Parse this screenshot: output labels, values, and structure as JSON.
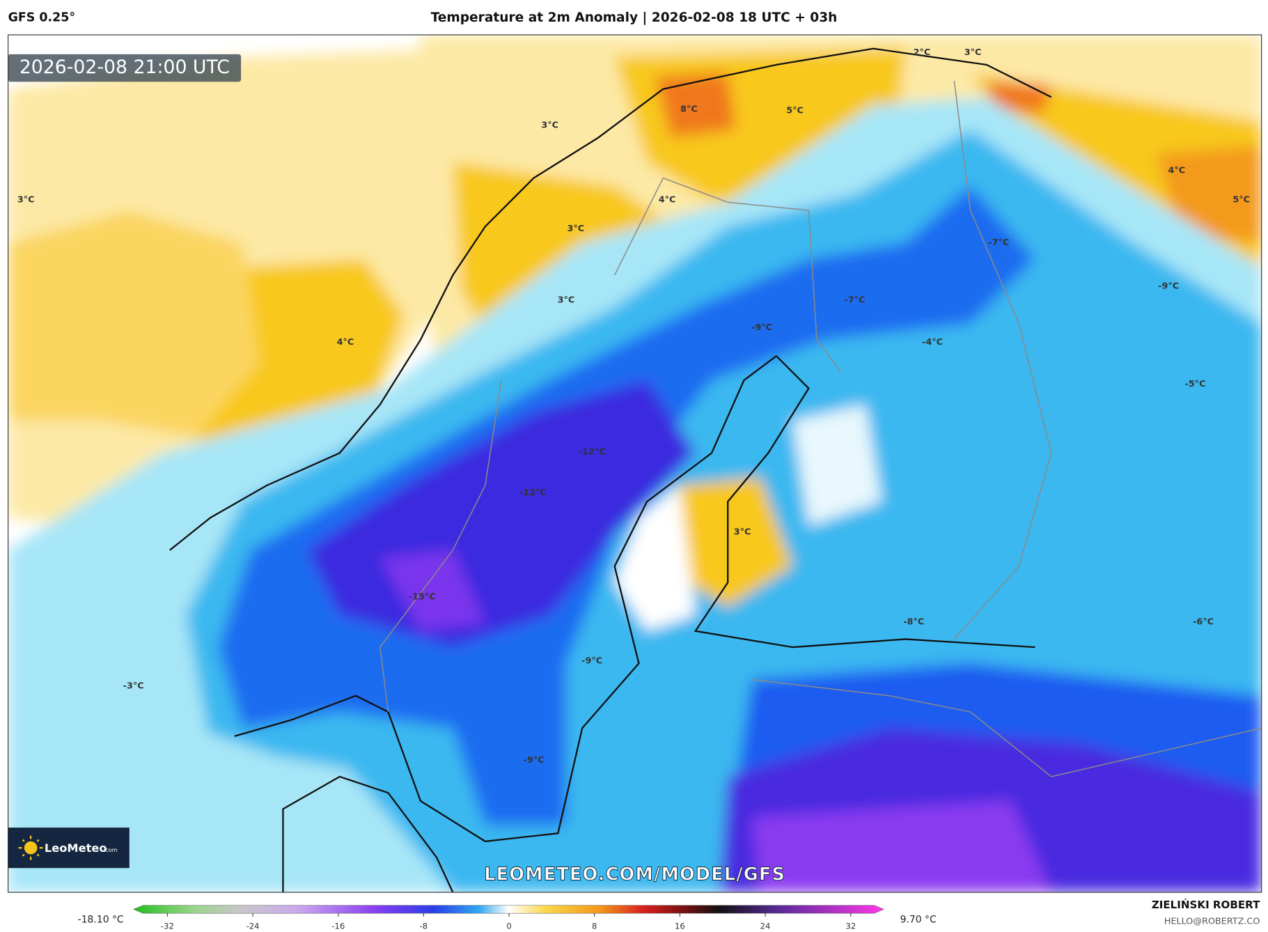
{
  "header": {
    "model": "GFS 0.25°",
    "title": "Temperature at 2m Anomaly | 2026-02-08 18 UTC + 03h"
  },
  "map": {
    "valid_time": "2026-02-08 21:00 UTC",
    "labels": [
      "3°C",
      "3°C",
      "2°C",
      "3°C",
      "8°C",
      "5°C",
      "4°C",
      "3°C",
      "3°C",
      "4°C",
      "4°C",
      "5°C",
      "-7°C",
      "-9°C",
      "-7°C",
      "-9°C",
      "-4°C",
      "-5°C",
      "-12°C",
      "-12°C",
      "3°C",
      "-15°C",
      "-8°C",
      "-6°C",
      "-9°C",
      "-3°C",
      "-9°C"
    ],
    "watermark": "LEOMETEO.COM/MODEL/GFS"
  },
  "logo": {
    "name": "LeoMeteo",
    "suffix": ".com"
  },
  "colorbar": {
    "min_label": "-18.10 °C",
    "max_label": "9.70 °C",
    "ticks": [
      -32,
      -24,
      -16,
      -8,
      0,
      8,
      16,
      24,
      32
    ]
  },
  "footer": {
    "author": "ZIELIŃSKI ROBERT",
    "email": "HELLO@ROBERTZ.CO"
  }
}
